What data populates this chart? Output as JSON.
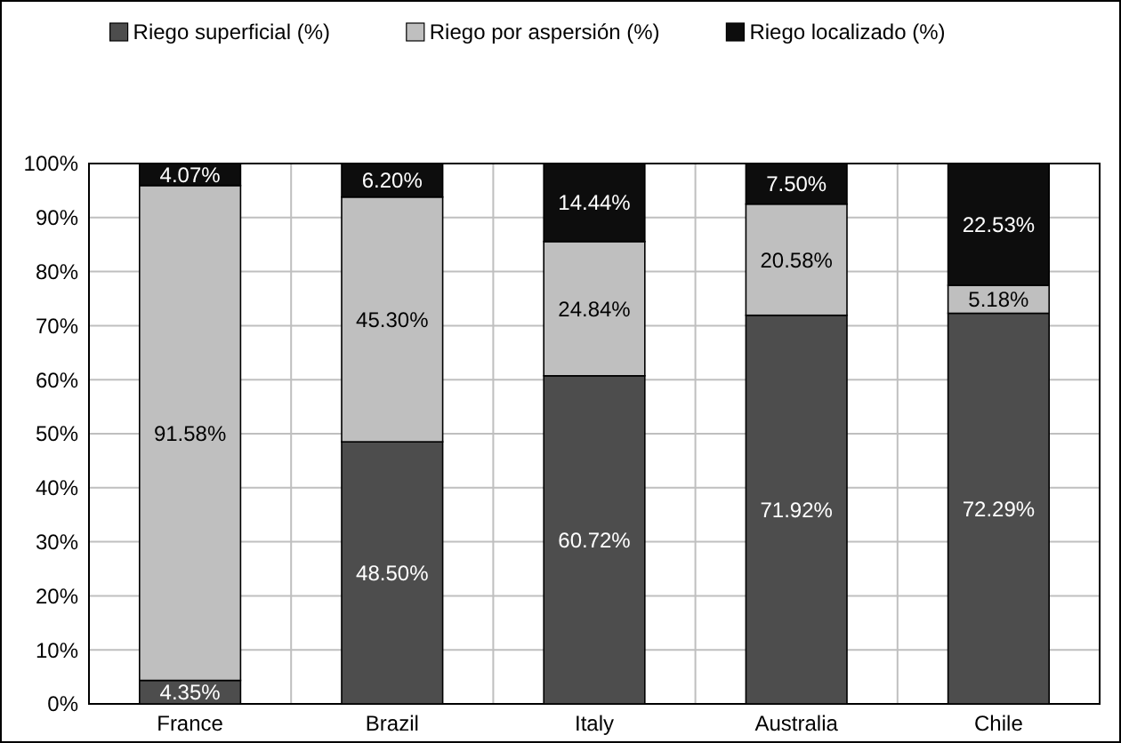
{
  "chart_data": {
    "type": "bar",
    "stacked": true,
    "categories": [
      "France",
      "Brazil",
      "Italy",
      "Australia",
      "Chile"
    ],
    "series": [
      {
        "name": "Riego superficial (%)",
        "color": "#4d4d4d",
        "values": [
          4.35,
          48.5,
          60.72,
          71.92,
          72.29
        ],
        "value_labels": [
          "4.35%",
          "48.50%",
          "60.72%",
          "71.92%",
          "72.29%"
        ]
      },
      {
        "name": "Riego por aspersión (%)",
        "color": "#bfbfbf",
        "values": [
          91.58,
          45.3,
          24.84,
          20.58,
          5.18
        ],
        "value_labels": [
          "91.58%",
          "45.30%",
          "24.84%",
          "20.58%",
          "5.18%"
        ]
      },
      {
        "name": "Riego localizado (%)",
        "color": "#0d0d0d",
        "values": [
          4.07,
          6.2,
          14.44,
          7.5,
          22.53
        ],
        "value_labels": [
          "4.07%",
          "6.20%",
          "14.44%",
          "7.50%",
          "22.53%"
        ]
      }
    ],
    "ylim": [
      0,
      100
    ],
    "yticks": [
      {
        "value": 0,
        "label": "0%"
      },
      {
        "value": 10,
        "label": "10%"
      },
      {
        "value": 20,
        "label": "20%"
      },
      {
        "value": 30,
        "label": "30%"
      },
      {
        "value": 40,
        "label": "40%"
      },
      {
        "value": 50,
        "label": "50%"
      },
      {
        "value": 60,
        "label": "60%"
      },
      {
        "value": 70,
        "label": "70%"
      },
      {
        "value": 80,
        "label": "80%"
      },
      {
        "value": 90,
        "label": "90%"
      },
      {
        "value": 100,
        "label": "100%"
      }
    ],
    "grid": true,
    "legend": "top"
  }
}
